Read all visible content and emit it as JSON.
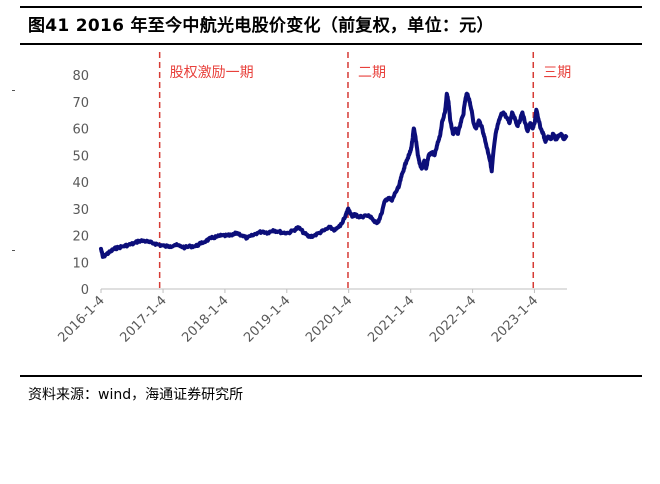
{
  "header": {
    "title": "图41 2016 年至今中航光电股价变化（前复权，单位：元）"
  },
  "footer": {
    "source": "资料来源：wind，海通证券研究所"
  },
  "colors": {
    "line": "#0c0e7a",
    "period_marker": "#d63b35",
    "period_text": "#e8413c",
    "axis_text": "#595959"
  },
  "chart_data": {
    "type": "line",
    "title": "图41 2016 年至今中航光电股价变化（前复权，单位：元）",
    "xlabel": "",
    "ylabel": "",
    "ylim": [
      0,
      80
    ],
    "yticks": [
      0,
      10,
      20,
      30,
      40,
      50,
      60,
      70,
      80
    ],
    "xlim": [
      "2016-01-04",
      "2023-07-15"
    ],
    "xticks": [
      "2016-1-4",
      "2017-1-4",
      "2018-1-4",
      "2019-1-4",
      "2020-1-4",
      "2021-1-4",
      "2022-1-4",
      "2023-1-4"
    ],
    "grid": false,
    "legend": "none",
    "series": [
      {
        "name": "",
        "points": [
          [
            "2016-01-04",
            15
          ],
          [
            "2016-01-15",
            12
          ],
          [
            "2016-02-05",
            13
          ],
          [
            "2016-03-01",
            14
          ],
          [
            "2016-03-20",
            15
          ],
          [
            "2016-04-15",
            15.5
          ],
          [
            "2016-05-15",
            16
          ],
          [
            "2016-06-15",
            16.5
          ],
          [
            "2016-07-15",
            17
          ],
          [
            "2016-08-15",
            18
          ],
          [
            "2016-09-15",
            18
          ],
          [
            "2016-10-15",
            17.5
          ],
          [
            "2016-11-15",
            17
          ],
          [
            "2016-12-15",
            16.5
          ],
          [
            "2017-01-15",
            16
          ],
          [
            "2017-02-15",
            16
          ],
          [
            "2017-03-15",
            16.5
          ],
          [
            "2017-04-15",
            16
          ],
          [
            "2017-05-15",
            15.5
          ],
          [
            "2017-06-15",
            16
          ],
          [
            "2017-07-15",
            16
          ],
          [
            "2017-08-15",
            17
          ],
          [
            "2017-09-15",
            18
          ],
          [
            "2017-10-15",
            19
          ],
          [
            "2017-11-15",
            19.5
          ],
          [
            "2017-12-15",
            20
          ],
          [
            "2018-01-15",
            20
          ],
          [
            "2018-02-15",
            20
          ],
          [
            "2018-03-15",
            21
          ],
          [
            "2018-04-15",
            20
          ],
          [
            "2018-05-15",
            19
          ],
          [
            "2018-06-15",
            20
          ],
          [
            "2018-07-15",
            21
          ],
          [
            "2018-08-15",
            21.5
          ],
          [
            "2018-09-15",
            21
          ],
          [
            "2018-10-15",
            22
          ],
          [
            "2018-11-15",
            21.5
          ],
          [
            "2018-12-15",
            21
          ],
          [
            "2019-01-15",
            21
          ],
          [
            "2019-02-15",
            22
          ],
          [
            "2019-03-15",
            23
          ],
          [
            "2019-04-15",
            21
          ],
          [
            "2019-05-15",
            19.5
          ],
          [
            "2019-06-15",
            20
          ],
          [
            "2019-07-15",
            21
          ],
          [
            "2019-08-15",
            22
          ],
          [
            "2019-09-15",
            23
          ],
          [
            "2019-10-15",
            22
          ],
          [
            "2019-11-15",
            23.5
          ],
          [
            "2019-12-15",
            27
          ],
          [
            "2019-12-31",
            30
          ],
          [
            "2020-01-10",
            29
          ],
          [
            "2020-01-25",
            27
          ],
          [
            "2020-02-10",
            28
          ],
          [
            "2020-03-01",
            27
          ],
          [
            "2020-03-20",
            27
          ],
          [
            "2020-04-15",
            27.5
          ],
          [
            "2020-05-15",
            27
          ],
          [
            "2020-06-05",
            25
          ],
          [
            "2020-06-25",
            25
          ],
          [
            "2020-07-15",
            28
          ],
          [
            "2020-08-05",
            33
          ],
          [
            "2020-08-25",
            34
          ],
          [
            "2020-09-15",
            33
          ],
          [
            "2020-10-05",
            36
          ],
          [
            "2020-10-25",
            38
          ],
          [
            "2020-11-10",
            42
          ],
          [
            "2020-11-25",
            45
          ],
          [
            "2020-12-10",
            48
          ],
          [
            "2020-12-25",
            50
          ],
          [
            "2021-01-05",
            52
          ],
          [
            "2021-01-15",
            56
          ],
          [
            "2021-01-22",
            60
          ],
          [
            "2021-02-01",
            57
          ],
          [
            "2021-02-15",
            50
          ],
          [
            "2021-02-25",
            47
          ],
          [
            "2021-03-10",
            45
          ],
          [
            "2021-03-25",
            48
          ],
          [
            "2021-04-05",
            45
          ],
          [
            "2021-04-20",
            50
          ],
          [
            "2021-05-10",
            51
          ],
          [
            "2021-05-25",
            50
          ],
          [
            "2021-06-10",
            54
          ],
          [
            "2021-06-25",
            57
          ],
          [
            "2021-07-10",
            63
          ],
          [
            "2021-07-25",
            66
          ],
          [
            "2021-08-05",
            73
          ],
          [
            "2021-08-15",
            70
          ],
          [
            "2021-08-25",
            63
          ],
          [
            "2021-09-10",
            58
          ],
          [
            "2021-09-25",
            60
          ],
          [
            "2021-10-10",
            58
          ],
          [
            "2021-10-25",
            62
          ],
          [
            "2021-11-10",
            65
          ],
          [
            "2021-11-20",
            70
          ],
          [
            "2021-12-01",
            73
          ],
          [
            "2021-12-15",
            71
          ],
          [
            "2021-12-28",
            67
          ],
          [
            "2022-01-10",
            62
          ],
          [
            "2022-01-25",
            60
          ],
          [
            "2022-02-10",
            63
          ],
          [
            "2022-02-25",
            61
          ],
          [
            "2022-03-10",
            58
          ],
          [
            "2022-03-25",
            54
          ],
          [
            "2022-04-10",
            50
          ],
          [
            "2022-04-20",
            47
          ],
          [
            "2022-04-27",
            44
          ],
          [
            "2022-05-05",
            50
          ],
          [
            "2022-05-20",
            58
          ],
          [
            "2022-06-05",
            62
          ],
          [
            "2022-06-20",
            65
          ],
          [
            "2022-07-05",
            66
          ],
          [
            "2022-07-25",
            64
          ],
          [
            "2022-08-10",
            62
          ],
          [
            "2022-08-25",
            66
          ],
          [
            "2022-09-10",
            64
          ],
          [
            "2022-09-25",
            61
          ],
          [
            "2022-10-10",
            63
          ],
          [
            "2022-10-25",
            66
          ],
          [
            "2022-11-10",
            62
          ],
          [
            "2022-11-25",
            59
          ],
          [
            "2022-12-10",
            62
          ],
          [
            "2022-12-25",
            60
          ],
          [
            "2023-01-05",
            62
          ],
          [
            "2023-01-15",
            67
          ],
          [
            "2023-01-25",
            64
          ],
          [
            "2023-02-10",
            60
          ],
          [
            "2023-02-25",
            58
          ],
          [
            "2023-03-10",
            55
          ],
          [
            "2023-03-25",
            57
          ],
          [
            "2023-04-10",
            56
          ],
          [
            "2023-04-25",
            58
          ],
          [
            "2023-05-10",
            56
          ],
          [
            "2023-05-25",
            57
          ],
          [
            "2023-06-10",
            58
          ],
          [
            "2023-06-25",
            56
          ],
          [
            "2023-07-10",
            57
          ]
        ]
      }
    ],
    "annotations": [
      {
        "text": "股权激励一期",
        "date": "2016-12-15"
      },
      {
        "text": "二期",
        "date": "2019-12-31"
      },
      {
        "text": "三期",
        "date": "2022-12-28"
      }
    ]
  }
}
